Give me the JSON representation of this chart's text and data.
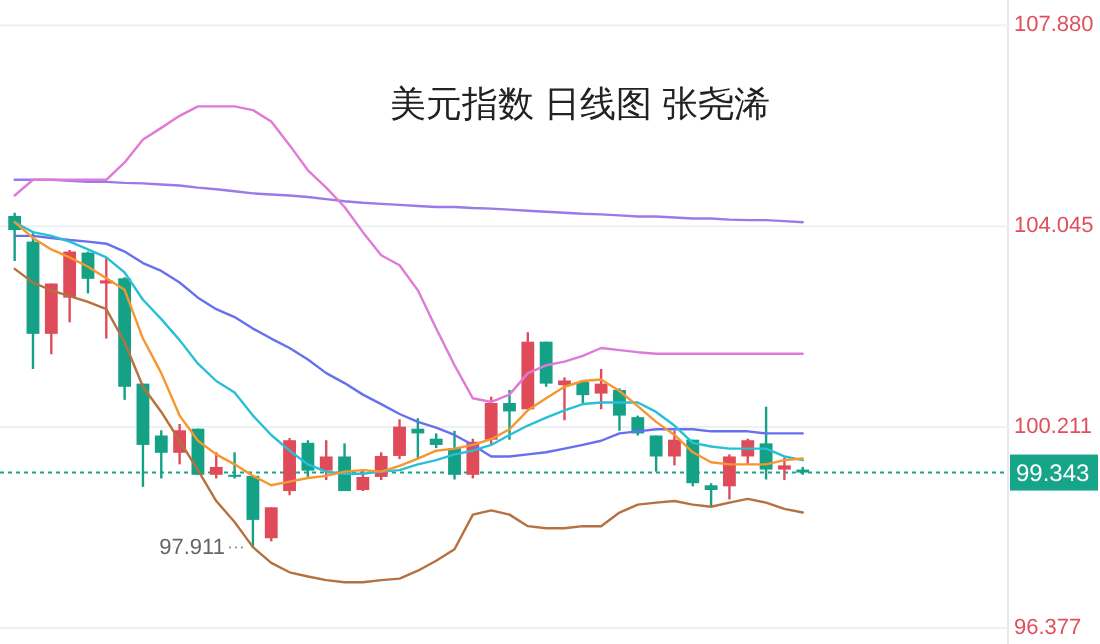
{
  "chart_data": {
    "type": "candlestick",
    "title": "美元指数 日线图 张尧浠",
    "categories": [
      null,
      null,
      null,
      null,
      null,
      null,
      null,
      null,
      null,
      null,
      null,
      null,
      null,
      null,
      null,
      null,
      null,
      null,
      null,
      null,
      null,
      null,
      null,
      null,
      null,
      null,
      null,
      null,
      null,
      null,
      null,
      null,
      null,
      null,
      null,
      null,
      null,
      null,
      null,
      null,
      null,
      null,
      null,
      null
    ],
    "ohlc": [
      [
        104.24,
        104.3,
        103.38,
        103.97
      ],
      [
        103.75,
        103.91,
        101.32,
        101.99
      ],
      [
        101.99,
        102.95,
        101.6,
        102.95
      ],
      [
        102.68,
        103.59,
        102.21,
        103.56
      ],
      [
        103.54,
        103.56,
        102.76,
        103.04
      ],
      [
        102.95,
        103.44,
        101.9,
        103.01
      ],
      [
        103.05,
        103.07,
        100.73,
        100.98
      ],
      [
        101.04,
        101.04,
        99.07,
        99.87
      ],
      [
        100.05,
        100.15,
        99.23,
        99.72
      ],
      [
        99.72,
        100.27,
        99.5,
        100.15
      ],
      [
        100.18,
        100.18,
        99.3,
        99.3
      ],
      [
        99.3,
        99.73,
        99.23,
        99.45
      ],
      [
        99.3,
        99.73,
        99.23,
        99.28
      ],
      [
        99.28,
        99.28,
        97.911,
        98.44
      ],
      [
        98.09,
        98.68,
        98.03,
        98.68
      ],
      [
        98.99,
        100.0,
        98.91,
        99.96
      ],
      [
        99.91,
        99.96,
        99.26,
        99.38
      ],
      [
        99.38,
        99.96,
        99.2,
        99.65
      ],
      [
        99.65,
        99.9,
        98.99,
        98.99
      ],
      [
        99.01,
        99.4,
        98.99,
        99.26
      ],
      [
        99.26,
        99.73,
        99.2,
        99.66
      ],
      [
        99.66,
        100.36,
        99.6,
        100.22
      ],
      [
        100.18,
        100.38,
        99.62,
        100.09
      ],
      [
        99.99,
        100.09,
        99.81,
        99.87
      ],
      [
        99.81,
        100.14,
        99.21,
        99.3
      ],
      [
        99.3,
        99.99,
        99.23,
        99.93
      ],
      [
        99.97,
        100.79,
        99.87,
        100.67
      ],
      [
        100.67,
        100.92,
        99.97,
        100.51
      ],
      [
        100.55,
        102.02,
        100.55,
        101.84
      ],
      [
        101.84,
        101.84,
        100.98,
        101.04
      ],
      [
        101.01,
        101.16,
        100.34,
        101.1
      ],
      [
        101.07,
        101.1,
        100.63,
        100.82
      ],
      [
        100.85,
        101.32,
        100.55,
        101.04
      ],
      [
        100.92,
        100.95,
        100.14,
        100.43
      ],
      [
        100.4,
        100.43,
        100.05,
        100.09
      ],
      [
        100.05,
        100.05,
        99.36,
        99.65
      ],
      [
        99.65,
        100.14,
        99.48,
        99.97
      ],
      [
        99.97,
        99.97,
        99.08,
        99.14
      ],
      [
        99.1,
        99.14,
        98.7,
        99.01
      ],
      [
        99.08,
        99.69,
        98.83,
        99.65
      ],
      [
        99.65,
        99.99,
        99.51,
        99.96
      ],
      [
        99.9,
        100.6,
        99.21,
        99.4
      ],
      [
        99.4,
        99.63,
        99.2,
        99.48
      ],
      [
        99.4,
        99.45,
        99.3,
        99.343
      ]
    ],
    "colors": [
      "#14a185",
      "#14a185",
      "#e04b5a",
      "#e04b5a",
      "#14a185",
      "#e04b5a",
      "#14a185",
      "#14a185",
      "#14a185",
      "#e04b5a",
      "#14a185",
      "#e04b5a",
      "#14a185",
      "#14a185",
      "#e04b5a",
      "#e04b5a",
      "#14a185",
      "#e04b5a",
      "#14a185",
      "#e04b5a",
      "#e04b5a",
      "#e04b5a",
      "#14a185",
      "#14a185",
      "#14a185",
      "#e04b5a",
      "#e04b5a",
      "#14a185",
      "#e04b5a",
      "#14a185",
      "#e04b5a",
      "#14a185",
      "#e04b5a",
      "#14a185",
      "#14a185",
      "#14a185",
      "#e04b5a",
      "#14a185",
      "#14a185",
      "#e04b5a",
      "#e04b5a",
      "#14a185",
      "#e04b5a",
      "#14a185"
    ],
    "series": [
      {
        "type": "line",
        "color": "#9a7ae8",
        "values": [
          104.93,
          104.93,
          104.93,
          104.91,
          104.89,
          104.89,
          104.87,
          104.86,
          104.84,
          104.82,
          104.78,
          104.75,
          104.71,
          104.67,
          104.65,
          104.63,
          104.6,
          104.56,
          104.52,
          104.49,
          104.47,
          104.45,
          104.43,
          104.41,
          104.41,
          104.39,
          104.38,
          104.36,
          104.34,
          104.32,
          104.3,
          104.28,
          104.27,
          104.25,
          104.23,
          104.23,
          104.21,
          104.19,
          104.19,
          104.17,
          104.16,
          104.16,
          104.14,
          104.12
        ]
      },
      {
        "type": "line",
        "color": "#e07ad8",
        "values": [
          104.63,
          104.93,
          104.93,
          104.93,
          104.93,
          104.93,
          105.26,
          105.7,
          105.92,
          106.15,
          106.33,
          106.33,
          106.33,
          106.26,
          106.04,
          105.59,
          105.11,
          104.78,
          104.41,
          103.93,
          103.49,
          103.3,
          102.82,
          102.09,
          101.39,
          100.76,
          100.69,
          100.83,
          101.24,
          101.39,
          101.46,
          101.57,
          101.72,
          101.68,
          101.64,
          101.61,
          101.61,
          101.61,
          101.61,
          101.61,
          101.61,
          101.61,
          101.61,
          101.61
        ]
      },
      {
        "type": "line",
        "color": "#b5713f",
        "values": [
          103.23,
          102.97,
          102.82,
          102.71,
          102.6,
          102.46,
          101.83,
          100.98,
          100.5,
          99.95,
          99.39,
          98.8,
          98.4,
          97.92,
          97.62,
          97.44,
          97.36,
          97.29,
          97.25,
          97.25,
          97.29,
          97.32,
          97.47,
          97.66,
          97.88,
          98.54,
          98.62,
          98.54,
          98.32,
          98.28,
          98.28,
          98.32,
          98.32,
          98.58,
          98.73,
          98.77,
          98.8,
          98.73,
          98.69,
          98.77,
          98.84,
          98.77,
          98.65,
          98.58
        ]
      },
      {
        "type": "line",
        "color": "#6670ee",
        "values": [
          103.86,
          103.86,
          103.82,
          103.78,
          103.75,
          103.71,
          103.56,
          103.34,
          103.19,
          102.97,
          102.68,
          102.46,
          102.31,
          102.09,
          101.9,
          101.72,
          101.5,
          101.24,
          101.05,
          100.83,
          100.65,
          100.46,
          100.31,
          100.2,
          100.06,
          99.87,
          99.65,
          99.65,
          99.69,
          99.73,
          99.8,
          99.87,
          99.95,
          100.09,
          100.13,
          100.17,
          100.17,
          100.17,
          100.13,
          100.13,
          100.13,
          100.09,
          100.09,
          100.09
        ]
      },
      {
        "type": "line",
        "color": "#28bfd8",
        "values": [
          104.12,
          103.93,
          103.86,
          103.75,
          103.6,
          103.45,
          103.16,
          102.64,
          102.27,
          101.87,
          101.42,
          101.09,
          100.87,
          100.43,
          100.06,
          99.76,
          99.5,
          99.36,
          99.32,
          99.32,
          99.36,
          99.39,
          99.5,
          99.58,
          99.69,
          99.76,
          99.87,
          100.06,
          100.24,
          100.39,
          100.53,
          100.65,
          100.68,
          100.68,
          100.68,
          100.5,
          100.24,
          99.91,
          99.84,
          99.8,
          99.8,
          99.8,
          99.65,
          99.58
        ]
      },
      {
        "type": "line",
        "color": "#f5962f",
        "values": [
          104.12,
          103.82,
          103.6,
          103.45,
          103.27,
          103.05,
          102.83,
          101.9,
          101.24,
          100.43,
          99.95,
          99.69,
          99.5,
          99.28,
          99.1,
          99.17,
          99.24,
          99.28,
          99.36,
          99.39,
          99.36,
          99.47,
          99.61,
          99.76,
          99.8,
          99.87,
          99.98,
          100.17,
          100.53,
          100.76,
          100.98,
          101.09,
          101.12,
          100.9,
          100.61,
          100.31,
          100.06,
          99.73,
          99.54,
          99.5,
          99.5,
          99.5,
          99.58,
          99.61
        ]
      }
    ],
    "ylim": [
      96.377,
      108.36
    ],
    "yticks": [
      96.377,
      100.211,
      104.045,
      {
        "value": 107.88,
        "label": "107.880"
      }
    ],
    "tick_labels": "y",
    "grid": "y",
    "ref_lines": [
      {
        "axis": "y",
        "value": 99.343,
        "label": "99.343",
        "color": "#17a589",
        "line_style": "dotted"
      }
    ],
    "annotations": [
      "97.911"
    ]
  }
}
